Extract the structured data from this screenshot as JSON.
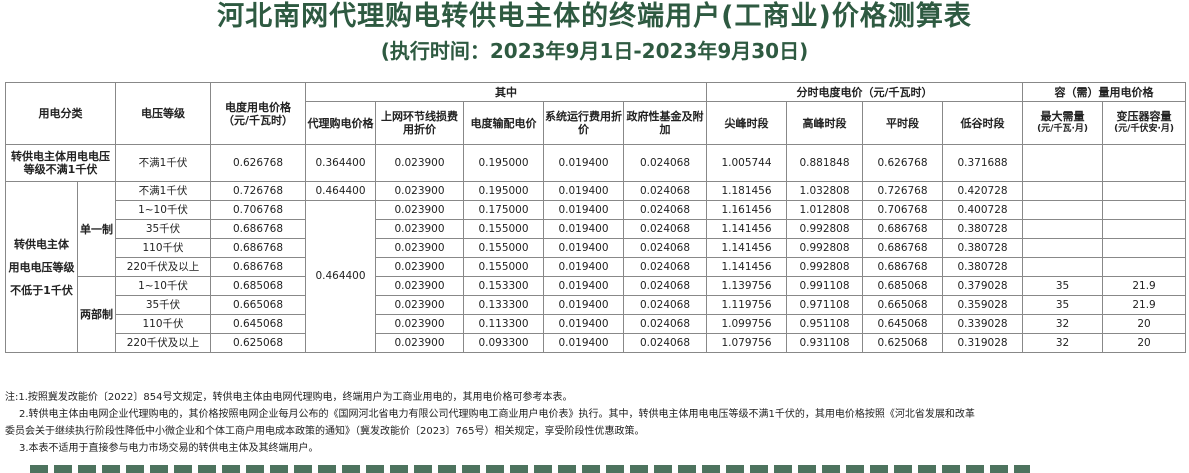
{
  "title": "河北南网代理购电转供电主体的终端用户(工商业)价格测算表",
  "subtitle": "(执行时间：2023年9月1日-2023年9月30日)",
  "table": {
    "headers": {
      "category": "用电分类",
      "voltage": "电压等级",
      "price": "电度用电价格（元/千瓦时）",
      "among": "其中",
      "tou": "分时电度电价（元/千瓦时）",
      "capacity": "容（需）量用电价格",
      "agency": "代理购电价格",
      "line_loss": "上网环节线损费用折价",
      "transmission": "电度输配电价",
      "system": "系统运行费用折价",
      "fund": "政府性基金及附加",
      "peak_sharp": "尖峰时段",
      "peak": "高峰时段",
      "flat": "平时段",
      "valley": "低谷时段",
      "max_demand": "最大需量",
      "max_demand_unit": "(元/千瓦·月)",
      "transformer": "变压器容量",
      "transformer_unit": "(元/千伏安·月)"
    },
    "group_low": "转供电主体用电电压等级不满1千伏",
    "group_high_line1": "转供电主体",
    "group_high_line2": "用电电压等级",
    "group_high_line3": "不低于1千伏",
    "single": "单一制",
    "dual": "两部制",
    "agency_a": "0.464400",
    "agency_b": "0.464400",
    "rows": [
      {
        "voltage": "不满1千伏",
        "price": "0.626768",
        "agency": "0.364400",
        "line_loss": "0.023900",
        "transmission": "0.195000",
        "system": "0.019400",
        "fund": "0.024068",
        "peak_sharp": "1.005744",
        "peak": "0.881848",
        "flat": "0.626768",
        "valley": "0.371688",
        "max_demand": "",
        "transformer": ""
      },
      {
        "voltage": "不满1千伏",
        "price": "0.726768",
        "line_loss": "0.023900",
        "transmission": "0.195000",
        "system": "0.019400",
        "fund": "0.024068",
        "peak_sharp": "1.181456",
        "peak": "1.032808",
        "flat": "0.726768",
        "valley": "0.420728",
        "max_demand": "",
        "transformer": ""
      },
      {
        "voltage": "1~10千伏",
        "price": "0.706768",
        "line_loss": "0.023900",
        "transmission": "0.175000",
        "system": "0.019400",
        "fund": "0.024068",
        "peak_sharp": "1.161456",
        "peak": "1.012808",
        "flat": "0.706768",
        "valley": "0.400728",
        "max_demand": "",
        "transformer": ""
      },
      {
        "voltage": "35千伏",
        "price": "0.686768",
        "line_loss": "0.023900",
        "transmission": "0.155000",
        "system": "0.019400",
        "fund": "0.024068",
        "peak_sharp": "1.141456",
        "peak": "0.992808",
        "flat": "0.686768",
        "valley": "0.380728",
        "max_demand": "",
        "transformer": ""
      },
      {
        "voltage": "110千伏",
        "price": "0.686768",
        "line_loss": "0.023900",
        "transmission": "0.155000",
        "system": "0.019400",
        "fund": "0.024068",
        "peak_sharp": "1.141456",
        "peak": "0.992808",
        "flat": "0.686768",
        "valley": "0.380728",
        "max_demand": "",
        "transformer": ""
      },
      {
        "voltage": "220千伏及以上",
        "price": "0.686768",
        "line_loss": "0.023900",
        "transmission": "0.155000",
        "system": "0.019400",
        "fund": "0.024068",
        "peak_sharp": "1.141456",
        "peak": "0.992808",
        "flat": "0.686768",
        "valley": "0.380728",
        "max_demand": "",
        "transformer": ""
      },
      {
        "voltage": "1~10千伏",
        "price": "0.685068",
        "line_loss": "0.023900",
        "transmission": "0.153300",
        "system": "0.019400",
        "fund": "0.024068",
        "peak_sharp": "1.139756",
        "peak": "0.991108",
        "flat": "0.685068",
        "valley": "0.379028",
        "max_demand": "35",
        "transformer": "21.9"
      },
      {
        "voltage": "35千伏",
        "price": "0.665068",
        "line_loss": "0.023900",
        "transmission": "0.133300",
        "system": "0.019400",
        "fund": "0.024068",
        "peak_sharp": "1.119756",
        "peak": "0.971108",
        "flat": "0.665068",
        "valley": "0.359028",
        "max_demand": "35",
        "transformer": "21.9"
      },
      {
        "voltage": "110千伏",
        "price": "0.645068",
        "line_loss": "0.023900",
        "transmission": "0.113300",
        "system": "0.019400",
        "fund": "0.024068",
        "peak_sharp": "1.099756",
        "peak": "0.951108",
        "flat": "0.645068",
        "valley": "0.339028",
        "max_demand": "32",
        "transformer": "20"
      },
      {
        "voltage": "220千伏及以上",
        "price": "0.625068",
        "line_loss": "0.023900",
        "transmission": "0.093300",
        "system": "0.019400",
        "fund": "0.024068",
        "peak_sharp": "1.079756",
        "peak": "0.931108",
        "flat": "0.625068",
        "valley": "0.319028",
        "max_demand": "32",
        "transformer": "20"
      }
    ]
  },
  "notes": {
    "n1": "注:1.按照冀发改能价〔2022〕854号文规定，转供电主体由电网代理购电，终端用户为工商业用电的，其用电价格可参考本表。",
    "n2a": "2.转供电主体由电网企业代理购电的，其价格按照电网企业每月公布的《国网河北省电力有限公司代理购电工商业用户电价表》执行。其中，转供电主体用电电压等级不满1千伏的，其用电价格按照《河北省发展和改革",
    "n2b": "委员会关于继续执行阶段性降低中小微企业和个体工商户用电成本政策的通知》（冀发改能价〔2023〕765号）相关规定，享受阶段性优惠政策。",
    "n3": "3.本表不适用于直接参与电力市场交易的转供电主体及其终端用户。"
  }
}
